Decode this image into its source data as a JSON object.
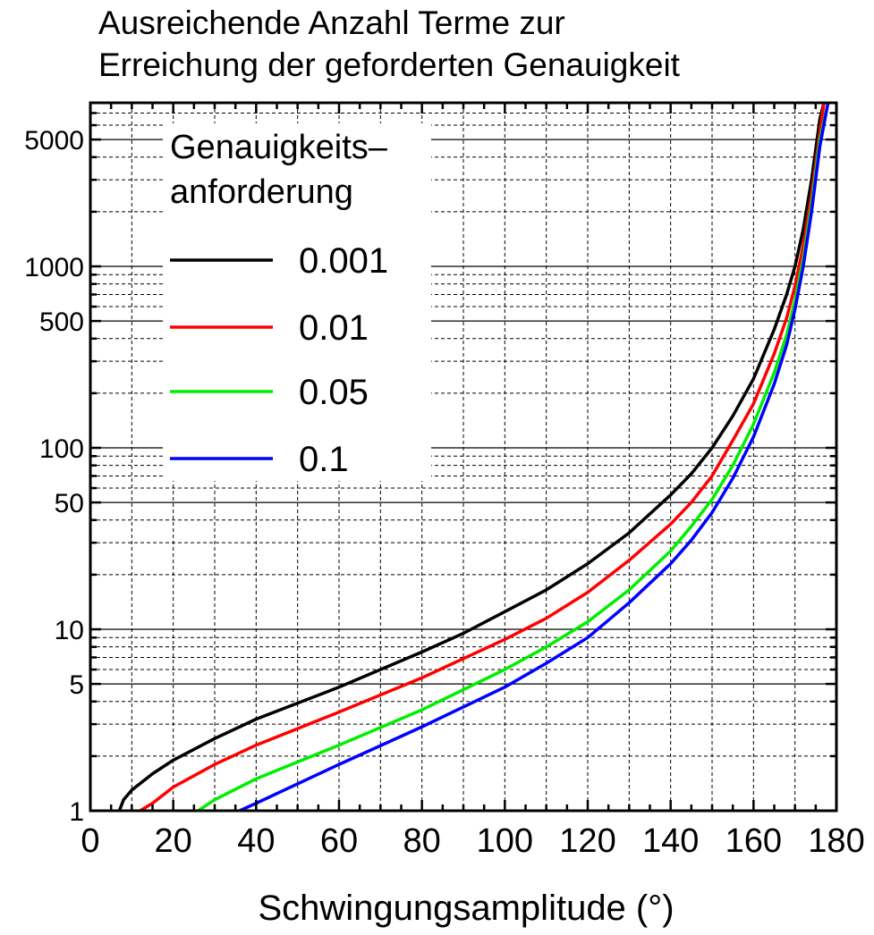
{
  "chart_data": {
    "type": "line",
    "title": [
      "Ausreichende Anzahl Terme zur",
      "Erreichung der geforderten Genauigkeit"
    ],
    "xlabel": "Schwingungsamplitude (°)",
    "ylabel": "",
    "xlim": [
      0,
      180
    ],
    "ylim": [
      1,
      8000
    ],
    "y_scale": "log",
    "grid": true,
    "x_tick_labels": [
      "0",
      "20",
      "40",
      "60",
      "80",
      "100",
      "120",
      "140",
      "160",
      "180"
    ],
    "x_ticks": [
      0,
      20,
      40,
      60,
      80,
      100,
      120,
      140,
      160,
      180
    ],
    "y_tick_labels": [
      "1",
      "5",
      "10",
      "50",
      "100",
      "500",
      "1000",
      "5000"
    ],
    "y_ticks": [
      1,
      5,
      10,
      50,
      100,
      500,
      1000,
      5000
    ],
    "legend": {
      "title": [
        "Genauigkeits–",
        "anforderung"
      ],
      "placement": "top-left"
    },
    "series": [
      {
        "name": "0.001",
        "color": "#000000",
        "points": [
          [
            7,
            1
          ],
          [
            8,
            1.15
          ],
          [
            10,
            1.3
          ],
          [
            15,
            1.6
          ],
          [
            20,
            1.9
          ],
          [
            30,
            2.5
          ],
          [
            40,
            3.2
          ],
          [
            60,
            4.8
          ],
          [
            80,
            7.5
          ],
          [
            90,
            9.5
          ],
          [
            100,
            12.5
          ],
          [
            110,
            16.5
          ],
          [
            120,
            23
          ],
          [
            130,
            34
          ],
          [
            140,
            55
          ],
          [
            145,
            72
          ],
          [
            150,
            100
          ],
          [
            155,
            150
          ],
          [
            160,
            240
          ],
          [
            165,
            450
          ],
          [
            168,
            700
          ],
          [
            170,
            1000
          ],
          [
            172,
            1600
          ],
          [
            174,
            3000
          ],
          [
            176,
            6500
          ],
          [
            177,
            8000
          ]
        ]
      },
      {
        "name": "0.01",
        "color": "#ff0000",
        "points": [
          [
            12,
            1
          ],
          [
            15,
            1.1
          ],
          [
            20,
            1.35
          ],
          [
            30,
            1.8
          ],
          [
            40,
            2.3
          ],
          [
            60,
            3.5
          ],
          [
            80,
            5.4
          ],
          [
            100,
            8.8
          ],
          [
            110,
            11.5
          ],
          [
            120,
            16
          ],
          [
            130,
            24
          ],
          [
            140,
            38
          ],
          [
            145,
            50
          ],
          [
            150,
            70
          ],
          [
            155,
            110
          ],
          [
            160,
            175
          ],
          [
            165,
            330
          ],
          [
            168,
            520
          ],
          [
            170,
            780
          ],
          [
            172,
            1300
          ],
          [
            174,
            2500
          ],
          [
            176,
            5500
          ],
          [
            177,
            8000
          ]
        ]
      },
      {
        "name": "0.05",
        "color": "#00ee00",
        "points": [
          [
            26,
            1
          ],
          [
            30,
            1.15
          ],
          [
            40,
            1.5
          ],
          [
            60,
            2.3
          ],
          [
            80,
            3.6
          ],
          [
            100,
            6
          ],
          [
            110,
            8
          ],
          [
            120,
            11
          ],
          [
            130,
            16.5
          ],
          [
            140,
            27
          ],
          [
            145,
            37
          ],
          [
            150,
            52
          ],
          [
            155,
            80
          ],
          [
            160,
            135
          ],
          [
            165,
            260
          ],
          [
            168,
            420
          ],
          [
            170,
            650
          ],
          [
            172,
            1100
          ],
          [
            174,
            2200
          ],
          [
            176,
            5000
          ],
          [
            178,
            8000
          ]
        ]
      },
      {
        "name": "0.1",
        "color": "#0000ff",
        "points": [
          [
            36,
            1
          ],
          [
            40,
            1.1
          ],
          [
            60,
            1.8
          ],
          [
            80,
            2.9
          ],
          [
            100,
            4.8
          ],
          [
            110,
            6.5
          ],
          [
            120,
            9
          ],
          [
            130,
            14
          ],
          [
            140,
            23
          ],
          [
            145,
            31
          ],
          [
            150,
            44
          ],
          [
            155,
            68
          ],
          [
            160,
            115
          ],
          [
            165,
            225
          ],
          [
            168,
            370
          ],
          [
            170,
            580
          ],
          [
            172,
            1000
          ],
          [
            174,
            2000
          ],
          [
            176,
            4600
          ],
          [
            178,
            8000
          ]
        ]
      }
    ]
  }
}
